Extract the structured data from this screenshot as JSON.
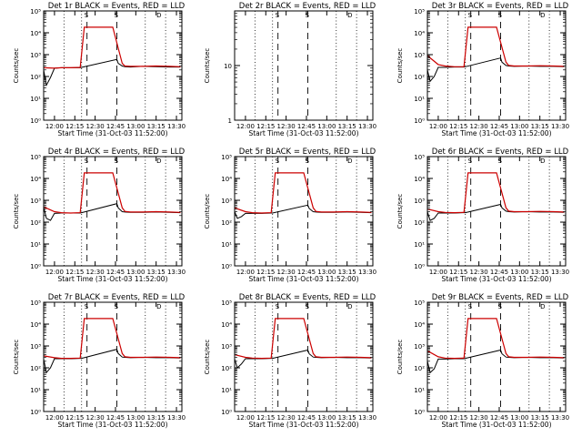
{
  "figure": {
    "background": "#ffffff",
    "axis_color": "#000000",
    "events_color": "#000000",
    "lld_color": "#cc0000"
  },
  "shared": {
    "xlabel": "Start Time (31-Oct-03 11:52:00)",
    "ylabel": "Counts/sec",
    "x_tick_labels": [
      "12:00",
      "12:15",
      "12:30",
      "12:45",
      "13:00",
      "13:15",
      "13:30"
    ],
    "y_tick_labels_log": [
      "10⁰",
      "10¹",
      "10²",
      "10³",
      "10⁴",
      "10⁵"
    ],
    "y_tick_labels_empty": [
      "1",
      "10"
    ],
    "top_markers": [
      "S",
      "D"
    ]
  },
  "chart_data": [
    {
      "id": "det1r",
      "title": "Det 1r BLACK = Events, RED = LLD",
      "type": "line",
      "x_range": [
        "11:52",
        "13:34"
      ],
      "y_scale": "log",
      "ylim": [
        1,
        100000
      ],
      "vlines_dotted": [
        "12:07",
        "12:20",
        "13:07",
        "13:22"
      ],
      "vlines_dashed": [
        "12:24",
        "12:46"
      ],
      "series": [
        {
          "name": "Events",
          "color": "#000000",
          "x": [
            "11:52",
            "11:54",
            "11:57",
            "12:00",
            "12:05",
            "12:12",
            "12:19",
            "12:20",
            "12:46",
            "12:47",
            "12:50",
            "12:52",
            "12:56",
            "13:05",
            "13:15",
            "13:25",
            "13:33"
          ],
          "y": [
            200,
            40,
            90,
            240,
            250,
            250,
            250,
            260,
            600,
            400,
            300,
            280,
            270,
            290,
            280,
            270,
            270
          ]
        },
        {
          "name": "LLD",
          "color": "#cc0000",
          "x": [
            "11:52",
            "12:00",
            "12:05",
            "12:12",
            "12:19",
            "12:22",
            "12:34",
            "12:43",
            "12:50",
            "12:52",
            "12:56",
            "13:05",
            "13:15",
            "13:25",
            "13:33"
          ],
          "y": [
            250,
            240,
            250,
            250,
            260,
            18000,
            18000,
            18000,
            400,
            300,
            290,
            290,
            300,
            290,
            280
          ]
        }
      ]
    },
    {
      "id": "det2r",
      "title": "Det 2r BLACK = Events, RED = LLD",
      "type": "line",
      "x_range": [
        "11:52",
        "13:34"
      ],
      "y_scale": "log",
      "ylim": [
        1,
        100
      ],
      "vlines_dotted": [
        "12:07",
        "12:20",
        "13:07",
        "13:22"
      ],
      "vlines_dashed": [
        "12:24",
        "12:46"
      ],
      "series": []
    },
    {
      "id": "det3r",
      "title": "Det 3r BLACK = Events, RED = LLD",
      "type": "line",
      "x_range": [
        "11:52",
        "13:34"
      ],
      "y_scale": "log",
      "ylim": [
        1,
        100000
      ],
      "vlines_dotted": [
        "12:07",
        "12:20",
        "13:07",
        "13:22"
      ],
      "vlines_dashed": [
        "12:24",
        "12:46"
      ],
      "series": [
        {
          "name": "Events",
          "color": "#000000",
          "x": [
            "11:52",
            "11:54",
            "11:57",
            "12:00",
            "12:05",
            "12:12",
            "12:19",
            "12:20",
            "12:46",
            "12:47",
            "12:50",
            "12:52",
            "12:56",
            "13:05",
            "13:15",
            "13:25",
            "13:33"
          ],
          "y": [
            200,
            60,
            100,
            260,
            260,
            270,
            270,
            280,
            700,
            450,
            320,
            300,
            290,
            300,
            290,
            290,
            280
          ]
        },
        {
          "name": "LLD",
          "color": "#cc0000",
          "x": [
            "11:52",
            "12:00",
            "12:05",
            "12:12",
            "12:19",
            "12:22",
            "12:34",
            "12:43",
            "12:50",
            "12:52",
            "12:56",
            "13:05",
            "13:15",
            "13:25",
            "13:33"
          ],
          "y": [
            900,
            350,
            300,
            280,
            280,
            18000,
            18000,
            18000,
            450,
            320,
            300,
            300,
            310,
            300,
            290
          ]
        }
      ]
    },
    {
      "id": "det4r",
      "title": "Det 4r BLACK = Events, RED = LLD",
      "type": "line",
      "x_range": [
        "11:52",
        "13:34"
      ],
      "y_scale": "log",
      "ylim": [
        1,
        100000
      ],
      "vlines_dotted": [
        "12:07",
        "12:20",
        "13:07",
        "13:22"
      ],
      "vlines_dashed": [
        "12:24",
        "12:46"
      ],
      "series": [
        {
          "name": "Events",
          "color": "#000000",
          "x": [
            "11:52",
            "11:54",
            "11:57",
            "12:00",
            "12:05",
            "12:12",
            "12:19",
            "12:20",
            "12:46",
            "12:47",
            "12:50",
            "12:52",
            "12:56",
            "13:05",
            "13:15",
            "13:25",
            "13:33"
          ],
          "y": [
            500,
            150,
            120,
            250,
            260,
            260,
            260,
            270,
            700,
            450,
            300,
            290,
            280,
            280,
            290,
            280,
            270
          ]
        },
        {
          "name": "LLD",
          "color": "#cc0000",
          "x": [
            "11:52",
            "12:00",
            "12:05",
            "12:12",
            "12:19",
            "12:22",
            "12:34",
            "12:43",
            "12:50",
            "12:52",
            "12:56",
            "13:05",
            "13:15",
            "13:25",
            "13:33"
          ],
          "y": [
            500,
            300,
            270,
            260,
            270,
            18000,
            18000,
            18000,
            450,
            310,
            290,
            290,
            300,
            290,
            280
          ]
        }
      ]
    },
    {
      "id": "det5r",
      "title": "Det 5r BLACK = Events, RED = LLD",
      "type": "line",
      "x_range": [
        "11:52",
        "13:34"
      ],
      "y_scale": "log",
      "ylim": [
        1,
        100000
      ],
      "vlines_dotted": [
        "12:07",
        "12:20",
        "13:07",
        "13:22"
      ],
      "vlines_dashed": [
        "12:24",
        "12:46"
      ],
      "series": [
        {
          "name": "Events",
          "color": "#000000",
          "x": [
            "11:52",
            "11:54",
            "11:57",
            "12:00",
            "12:05",
            "12:12",
            "12:19",
            "12:20",
            "12:46",
            "12:47",
            "12:50",
            "12:52",
            "12:56",
            "13:05",
            "13:15",
            "13:25",
            "13:33"
          ],
          "y": [
            300,
            150,
            180,
            250,
            250,
            250,
            260,
            260,
            600,
            420,
            300,
            290,
            280,
            280,
            290,
            280,
            270
          ]
        },
        {
          "name": "LLD",
          "color": "#cc0000",
          "x": [
            "11:52",
            "12:00",
            "12:05",
            "12:12",
            "12:19",
            "12:22",
            "12:34",
            "12:43",
            "12:50",
            "12:52",
            "12:56",
            "13:05",
            "13:15",
            "13:25",
            "13:33"
          ],
          "y": [
            450,
            300,
            270,
            260,
            270,
            18000,
            18000,
            18000,
            450,
            310,
            290,
            290,
            300,
            290,
            280
          ]
        }
      ]
    },
    {
      "id": "det6r",
      "title": "Det 6r BLACK = Events, RED = LLD",
      "type": "line",
      "x_range": [
        "11:52",
        "13:34"
      ],
      "y_scale": "log",
      "ylim": [
        1,
        100000
      ],
      "vlines_dotted": [
        "12:07",
        "12:20",
        "13:07",
        "13:22"
      ],
      "vlines_dashed": [
        "12:24",
        "12:46"
      ],
      "series": [
        {
          "name": "Events",
          "color": "#000000",
          "x": [
            "11:52",
            "11:54",
            "11:57",
            "12:00",
            "12:05",
            "12:12",
            "12:19",
            "12:20",
            "12:46",
            "12:47",
            "12:50",
            "12:52",
            "12:56",
            "13:05",
            "13:15",
            "13:25",
            "13:33"
          ],
          "y": [
            300,
            120,
            150,
            260,
            260,
            260,
            270,
            270,
            650,
            450,
            320,
            300,
            290,
            300,
            290,
            290,
            280
          ]
        },
        {
          "name": "LLD",
          "color": "#cc0000",
          "x": [
            "11:52",
            "12:00",
            "12:05",
            "12:12",
            "12:19",
            "12:22",
            "12:34",
            "12:43",
            "12:50",
            "12:52",
            "12:56",
            "13:05",
            "13:15",
            "13:25",
            "13:33"
          ],
          "y": [
            400,
            300,
            280,
            270,
            280,
            18000,
            18000,
            18000,
            450,
            320,
            300,
            300,
            310,
            300,
            290
          ]
        }
      ]
    },
    {
      "id": "det7r",
      "title": "Det 7r BLACK = Events, RED = LLD",
      "type": "line",
      "x_range": [
        "11:52",
        "13:34"
      ],
      "y_scale": "log",
      "ylim": [
        1,
        100000
      ],
      "vlines_dotted": [
        "12:07",
        "12:20",
        "13:07",
        "13:22"
      ],
      "vlines_dashed": [
        "12:24",
        "12:46"
      ],
      "series": [
        {
          "name": "Events",
          "color": "#000000",
          "x": [
            "11:52",
            "11:54",
            "11:57",
            "12:00",
            "12:05",
            "12:12",
            "12:19",
            "12:20",
            "12:46",
            "12:47",
            "12:50",
            "12:52",
            "12:56",
            "13:05",
            "13:15",
            "13:25",
            "13:33"
          ],
          "y": [
            250,
            60,
            100,
            260,
            260,
            260,
            270,
            270,
            700,
            450,
            310,
            300,
            290,
            300,
            290,
            290,
            280
          ]
        },
        {
          "name": "LLD",
          "color": "#cc0000",
          "x": [
            "11:52",
            "12:00",
            "12:05",
            "12:12",
            "12:19",
            "12:22",
            "12:34",
            "12:43",
            "12:50",
            "12:52",
            "12:56",
            "13:05",
            "13:15",
            "13:25",
            "13:33"
          ],
          "y": [
            350,
            290,
            270,
            270,
            280,
            18000,
            18000,
            18000,
            450,
            320,
            300,
            300,
            310,
            300,
            290
          ]
        }
      ]
    },
    {
      "id": "det8r",
      "title": "Det 8r BLACK = Events, RED = LLD",
      "type": "line",
      "x_range": [
        "11:52",
        "13:34"
      ],
      "y_scale": "log",
      "ylim": [
        1,
        100000
      ],
      "vlines_dotted": [
        "12:07",
        "12:20",
        "13:07",
        "13:22"
      ],
      "vlines_dashed": [
        "12:24",
        "12:46"
      ],
      "series": [
        {
          "name": "Events",
          "color": "#000000",
          "x": [
            "11:52",
            "11:54",
            "11:57",
            "12:00",
            "12:05",
            "12:12",
            "12:19",
            "12:20",
            "12:46",
            "12:47",
            "12:50",
            "12:52",
            "12:56",
            "13:05",
            "13:15",
            "13:25",
            "13:33"
          ],
          "y": [
            250,
            100,
            150,
            260,
            260,
            260,
            270,
            270,
            650,
            440,
            310,
            300,
            290,
            300,
            290,
            290,
            280
          ]
        },
        {
          "name": "LLD",
          "color": "#cc0000",
          "x": [
            "11:52",
            "12:00",
            "12:05",
            "12:12",
            "12:19",
            "12:22",
            "12:34",
            "12:43",
            "12:50",
            "12:52",
            "12:56",
            "13:05",
            "13:15",
            "13:25",
            "13:33"
          ],
          "y": [
            400,
            300,
            280,
            270,
            280,
            18000,
            18000,
            18000,
            450,
            320,
            300,
            300,
            310,
            300,
            290
          ]
        }
      ]
    },
    {
      "id": "det9r",
      "title": "Det 9r BLACK = Events, RED = LLD",
      "type": "line",
      "x_range": [
        "11:52",
        "13:34"
      ],
      "y_scale": "log",
      "ylim": [
        1,
        100000
      ],
      "vlines_dotted": [
        "12:07",
        "12:20",
        "13:07",
        "13:22"
      ],
      "vlines_dashed": [
        "12:24",
        "12:46"
      ],
      "series": [
        {
          "name": "Events",
          "color": "#000000",
          "x": [
            "11:52",
            "11:54",
            "11:57",
            "12:00",
            "12:05",
            "12:12",
            "12:19",
            "12:20",
            "12:46",
            "12:47",
            "12:50",
            "12:52",
            "12:56",
            "13:05",
            "13:15",
            "13:25",
            "13:33"
          ],
          "y": [
            200,
            60,
            90,
            250,
            250,
            260,
            260,
            270,
            650,
            440,
            310,
            300,
            290,
            300,
            290,
            290,
            280
          ]
        },
        {
          "name": "LLD",
          "color": "#cc0000",
          "x": [
            "11:52",
            "12:00",
            "12:05",
            "12:12",
            "12:19",
            "12:22",
            "12:34",
            "12:43",
            "12:50",
            "12:52",
            "12:56",
            "13:05",
            "13:15",
            "13:25",
            "13:33"
          ],
          "y": [
            600,
            320,
            280,
            270,
            280,
            18000,
            18000,
            18000,
            450,
            320,
            300,
            300,
            310,
            300,
            290
          ]
        }
      ]
    }
  ]
}
